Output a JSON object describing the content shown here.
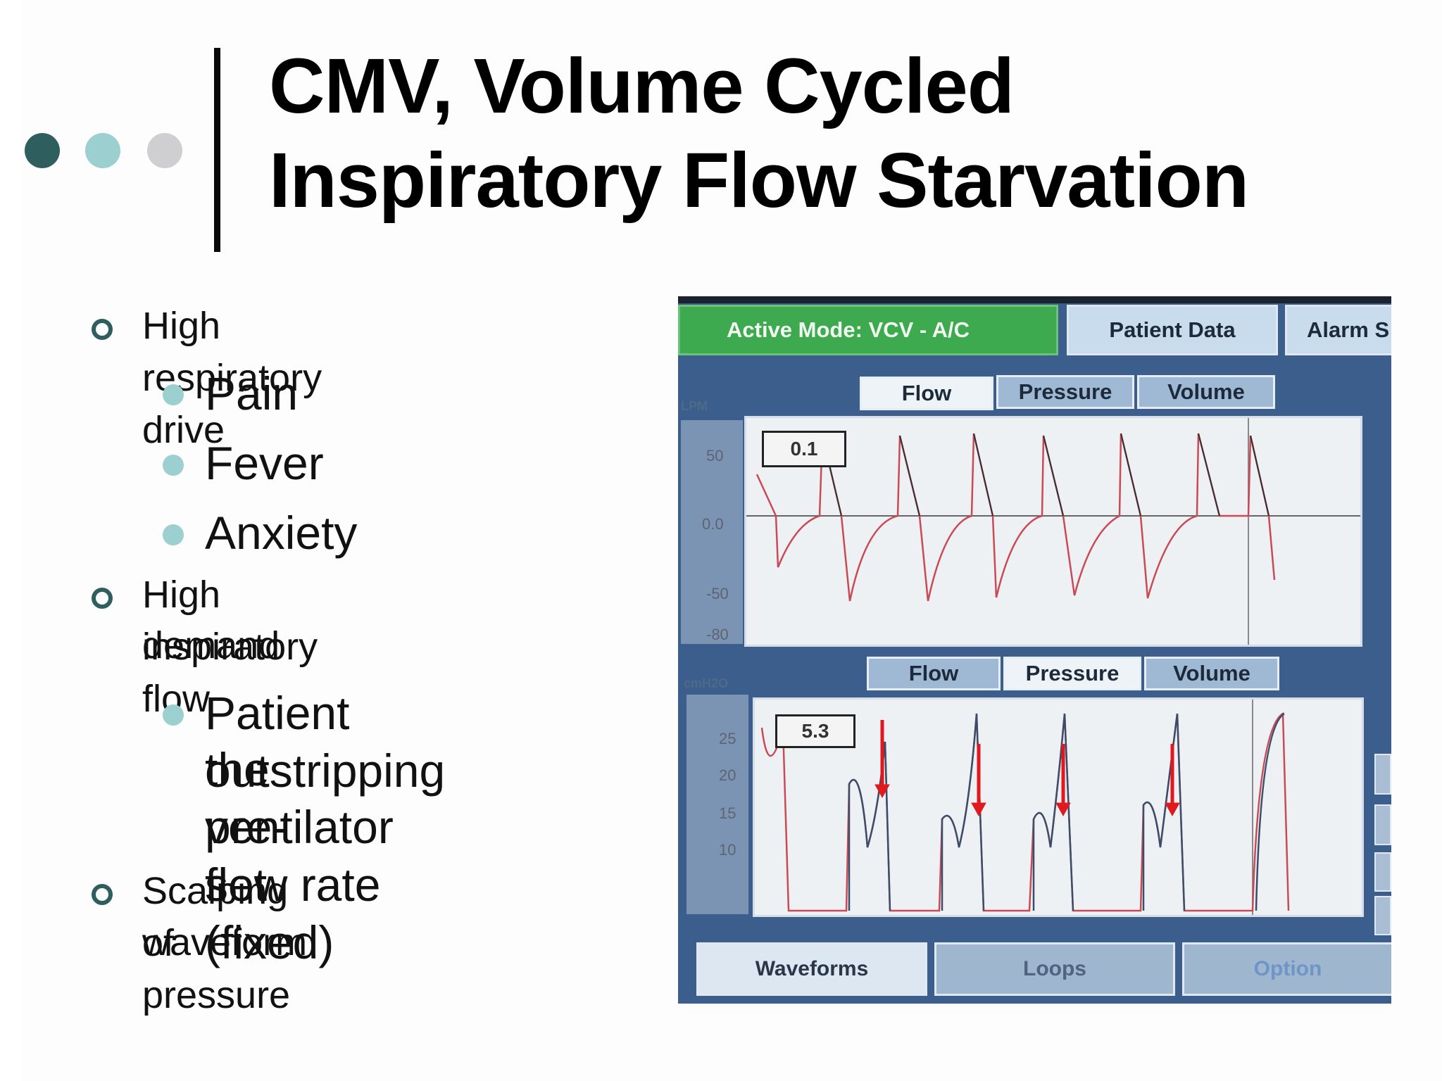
{
  "slide": {
    "title_line1": "CMV, Volume Cycled",
    "title_line2": "Inspiratory Flow Starvation",
    "bullets": [
      {
        "text": "High respiratory drive",
        "subs": [
          "Pain",
          "Fever",
          "Anxiety"
        ]
      },
      {
        "text_lines": [
          "High inspiratory flow",
          "demand"
        ],
        "subs_lines": [
          "Patient outstripping",
          "the pre-set (fixed)",
          "ventilator flow rate"
        ]
      },
      {
        "text_lines": [
          "Scalping of pressure",
          "waveform"
        ]
      }
    ],
    "colors": {
      "accent_dark": "#2e5f5e",
      "accent_light": "#9ccfcf",
      "accent_gray": "#cfcfd1"
    }
  },
  "ventilator": {
    "active_mode": "Active Mode:  VCV - A/C",
    "patient_data": "Patient Data",
    "alarm": "Alarm S",
    "top_tabs": [
      "Flow",
      "Pressure",
      "Volume"
    ],
    "bottom_tabs": [
      "Flow",
      "Pressure",
      "Volume"
    ],
    "flow_unit": "LPM",
    "pressure_unit": "cmH2O",
    "flow_readout": "0.1",
    "pressure_readout": "5.3",
    "flow_ticks": [
      "50",
      "0.0",
      "-50",
      "-80"
    ],
    "pressure_ticks": [
      "25",
      "20",
      "15",
      "10"
    ],
    "nav_tabs": [
      "Waveforms",
      "Loops",
      "Option"
    ],
    "arrow_color": "#e0191f"
  }
}
